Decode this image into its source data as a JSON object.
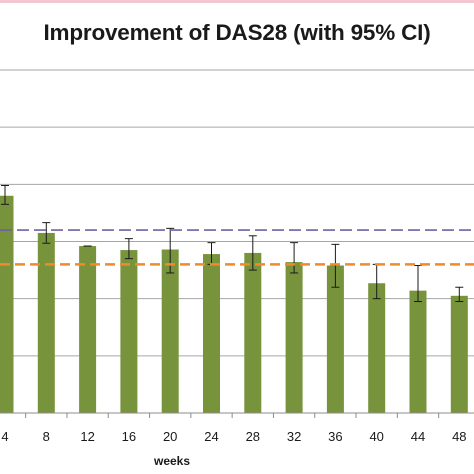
{
  "chart_data": {
    "type": "bar",
    "title": "Improvement of DAS28 (with 95% CI)",
    "xlabel": "weeks",
    "ylabel": "",
    "categories": [
      "4",
      "8",
      "12",
      "16",
      "20",
      "24",
      "28",
      "32",
      "36",
      "40",
      "44",
      "48"
    ],
    "series": [
      {
        "values": [
          3.8,
          3.15,
          2.92,
          2.85,
          2.86,
          2.78,
          2.8,
          2.64,
          2.58,
          2.27,
          2.14,
          2.05
        ],
        "ci_lower": [
          3.65,
          2.97,
          2.92,
          2.7,
          2.45,
          2.6,
          2.5,
          2.45,
          2.2,
          2.0,
          1.95,
          1.95
        ],
        "ci_upper": [
          3.98,
          3.33,
          2.92,
          3.05,
          3.23,
          2.98,
          3.1,
          2.98,
          2.95,
          2.6,
          2.58,
          2.2
        ]
      }
    ],
    "reference_lines": [
      {
        "value": 3.2,
        "color": "#7060a0",
        "style": "dashed"
      },
      {
        "value": 2.6,
        "color": "#f08a2c",
        "style": "dashed"
      }
    ],
    "ylim": [
      0,
      6
    ],
    "grid": true,
    "colors": {
      "bar": "#77933c",
      "grid": "#a6a6a6",
      "axis": "#8c8c8c"
    }
  }
}
